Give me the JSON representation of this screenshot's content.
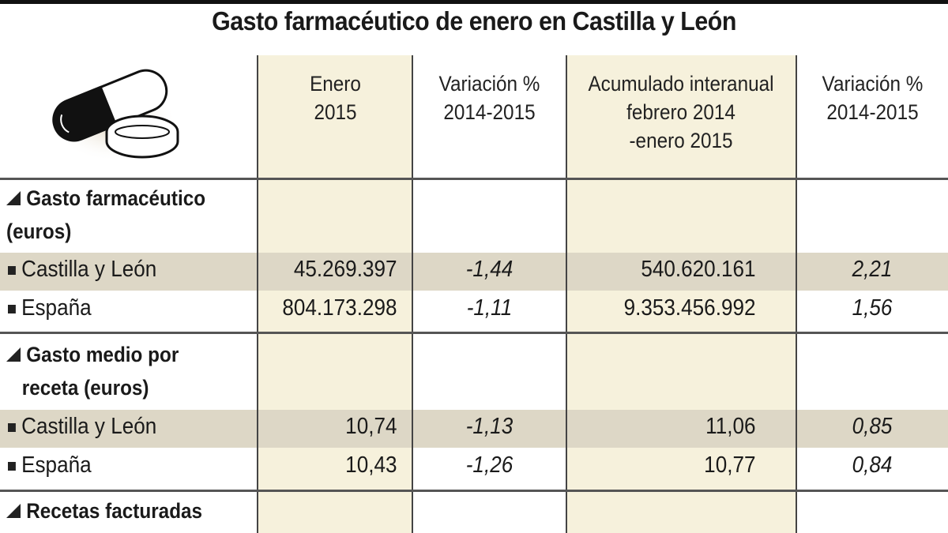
{
  "title": "Gasto farmacéutico de enero en Castilla y León",
  "chart_data": {
    "type": "table",
    "title": "Gasto farmacéutico de enero en Castilla y León",
    "columns": [
      "Enero 2015",
      "Variación % 2014-2015",
      "Acumulado interanual febrero 2014 -enero 2015",
      "Variación % 2014-2015"
    ],
    "header_lines": [
      [
        "Enero",
        "2015"
      ],
      [
        "Variación %",
        "2014-2015"
      ],
      [
        "Acumulado interanual",
        "febrero 2014",
        "-enero 2015"
      ],
      [
        "Variación %",
        "2014-2015"
      ]
    ],
    "sections": [
      {
        "label_lines": [
          "Gasto farmacéutico",
          "(euros)"
        ],
        "rows": [
          {
            "label": "Castilla y León",
            "values": [
              "45.269.397",
              "-1,44",
              "540.620.161",
              "2,21"
            ]
          },
          {
            "label": "España",
            "values": [
              "804.173.298",
              "-1,11",
              "9.353.456.992",
              "1,56"
            ]
          }
        ]
      },
      {
        "label_lines": [
          "Gasto medio por",
          "receta (euros)"
        ],
        "rows": [
          {
            "label": "Castilla y León",
            "values": [
              "10,74",
              "-1,13",
              "11,06",
              "0,85"
            ]
          },
          {
            "label": "España",
            "values": [
              "10,43",
              "-1,26",
              "10,77",
              "0,84"
            ]
          }
        ]
      },
      {
        "label_lines": [
          "Recetas facturadas"
        ],
        "rows": []
      }
    ],
    "colors": {
      "highlight_column": "#f6f1dc",
      "highlight_row": "#ddd7c6"
    }
  }
}
